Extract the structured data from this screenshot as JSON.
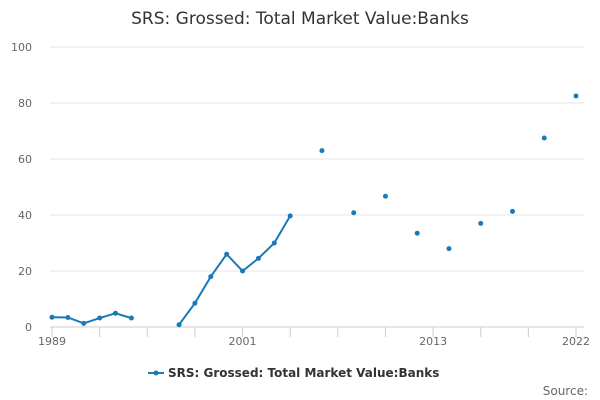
{
  "chart_data": {
    "type": "line",
    "title": "SRS: Grossed: Total Market Value:Banks",
    "xlabel": "",
    "ylabel": "",
    "xlim": [
      1989,
      2022
    ],
    "ylim": [
      0,
      100
    ],
    "x_ticks": [
      1989,
      2001,
      2013,
      2022
    ],
    "y_ticks": [
      0,
      20,
      40,
      60,
      80,
      100
    ],
    "grid": true,
    "legend_position": "bottom-center",
    "source_label": "Source:",
    "series": [
      {
        "name": "SRS: Grossed: Total Market Value:Banks",
        "color": "#1a7ab8",
        "points": [
          [
            1989,
            3.5
          ],
          [
            1990,
            3.4
          ],
          [
            1991,
            1.3
          ],
          [
            1992,
            3.2
          ],
          [
            1993,
            4.9
          ],
          [
            1994,
            3.2
          ],
          [
            1995,
            null
          ],
          [
            1996,
            null
          ],
          [
            1997,
            0.8
          ],
          [
            1998,
            8.5
          ],
          [
            1999,
            18.0
          ],
          [
            2000,
            26.0
          ],
          [
            2001,
            20.0
          ],
          [
            2002,
            24.5
          ],
          [
            2003,
            30.0
          ],
          [
            2004,
            39.7
          ],
          [
            2005,
            null
          ],
          [
            2006,
            63.0
          ],
          [
            2007,
            null
          ],
          [
            2008,
            40.8
          ],
          [
            2009,
            null
          ],
          [
            2010,
            46.7
          ],
          [
            2011,
            null
          ],
          [
            2012,
            33.5
          ],
          [
            2013,
            null
          ],
          [
            2014,
            28.0
          ],
          [
            2015,
            null
          ],
          [
            2016,
            37.0
          ],
          [
            2017,
            null
          ],
          [
            2018,
            41.3
          ],
          [
            2019,
            null
          ],
          [
            2020,
            67.5
          ],
          [
            2021,
            null
          ],
          [
            2022,
            82.5
          ]
        ]
      }
    ]
  }
}
